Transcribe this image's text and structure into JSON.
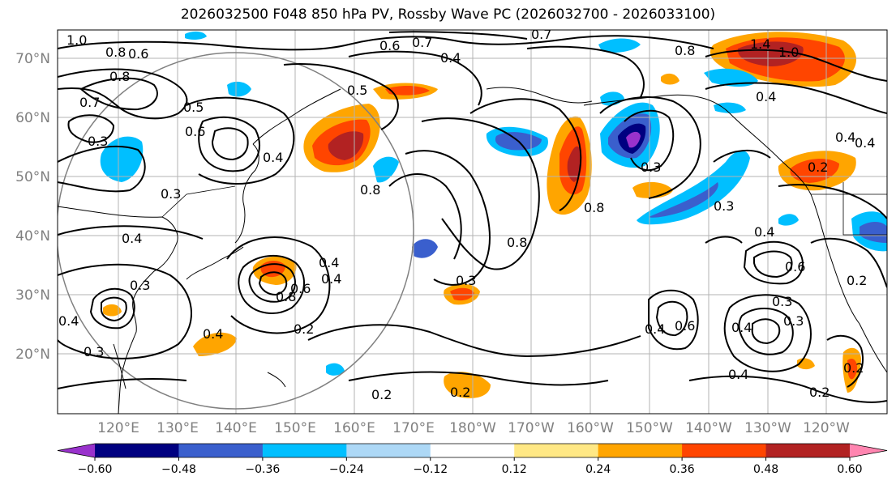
{
  "title": "2026032500 F048 850 hPa PV, Rossby Wave PC (2026032700 - 2026033100)",
  "lat_labels": [
    "70°N",
    "60°N",
    "50°N",
    "40°N",
    "30°N",
    "20°N"
  ],
  "lon_labels": [
    "120°E",
    "130°E",
    "140°E",
    "150°E",
    "160°E",
    "170°E",
    "180°W",
    "170°W",
    "160°W",
    "150°W",
    "140°W",
    "130°W",
    "120°W"
  ],
  "colorbar": {
    "colors": [
      "#9932CC",
      "#000080",
      "#3A5FCD",
      "#00BFFF",
      "#ADD8F6",
      "#FFFFFF",
      "#FFE885",
      "#FFA500",
      "#FF4500",
      "#B22222",
      "#FF85B0"
    ],
    "tick_labels": [
      "−0.60",
      "−0.48",
      "−0.36",
      "−0.24",
      "−0.12",
      "0.12",
      "0.24",
      "0.36",
      "0.48",
      "0.60"
    ]
  },
  "contour_labels": [
    "1.0",
    "0.8",
    "0.6",
    "0.7",
    "0.6",
    "0.4",
    "0.7",
    "0.8",
    "1.4",
    "1.0",
    "0.8",
    "0.7",
    "0.5",
    "0.3",
    "0.4",
    "0.5",
    "0.6",
    "0.4",
    "0.8",
    "0.8",
    "0.3",
    "0.3",
    "0.2",
    "0.4",
    "0.4",
    "0.8",
    "0.3",
    "0.4",
    "0.6",
    "0.4",
    "0.3",
    "0.6",
    "0.8",
    "0.4",
    "0.3",
    "0.2",
    "0.4",
    "0.3",
    "0.4",
    "0.2",
    "0.2",
    "0.2",
    "0.2",
    "0.4",
    "0.4",
    "0.4",
    "0.6",
    "0.3",
    "0.3",
    "0.4",
    "0.2"
  ]
}
